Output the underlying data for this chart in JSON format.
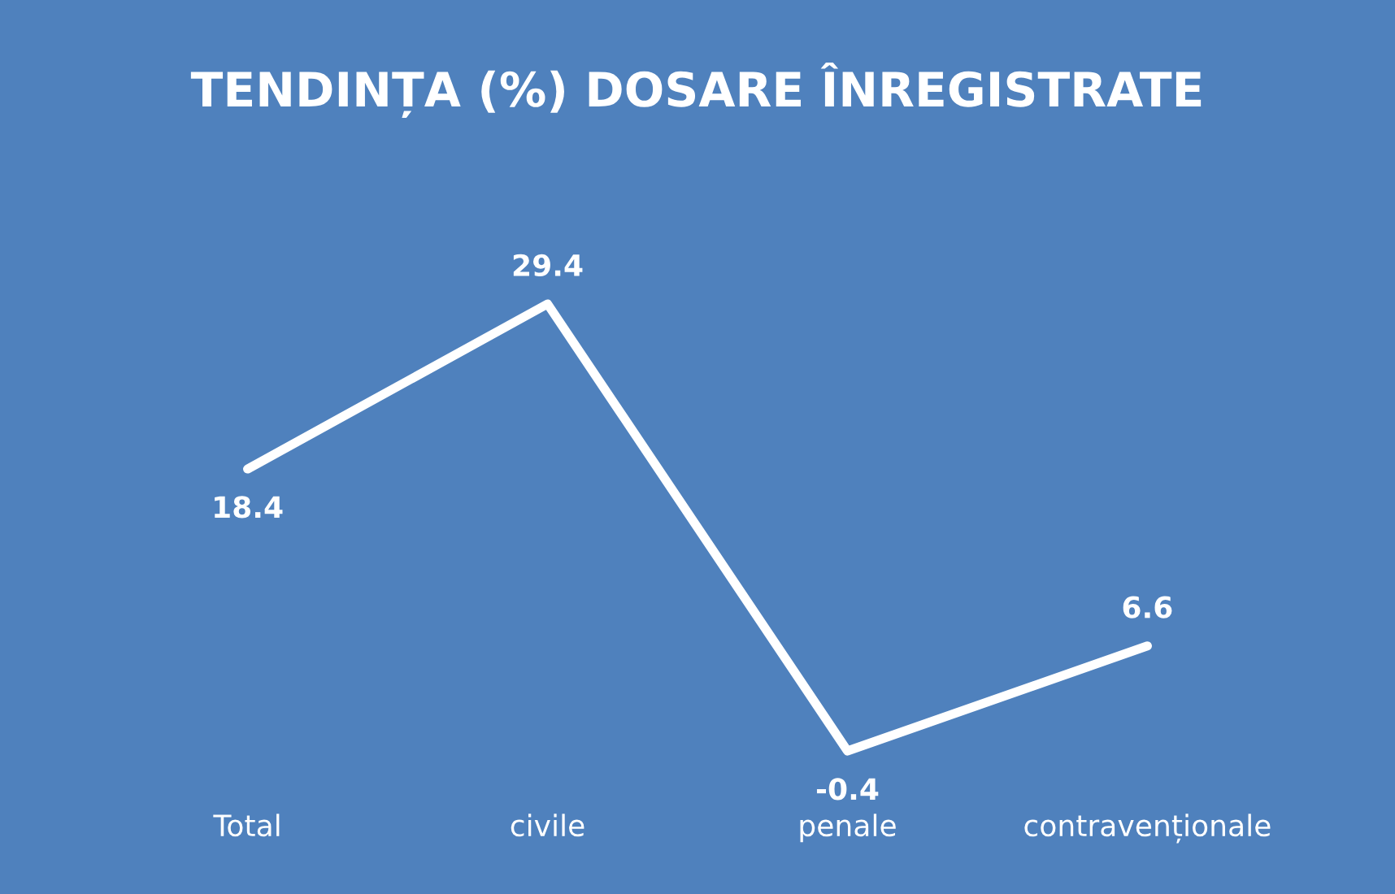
{
  "chart_data": {
    "type": "line",
    "title": "TENDINȚA (%) DOSARE ÎNREGISTRATE",
    "categories": [
      "Total",
      "civile",
      "penale",
      "contravenționale"
    ],
    "series": [
      {
        "color": "#ffffff",
        "values": [
          18.4,
          29.4,
          -0.4,
          6.6
        ]
      }
    ],
    "data_labels": true,
    "grid": false,
    "line_style": "solid"
  }
}
